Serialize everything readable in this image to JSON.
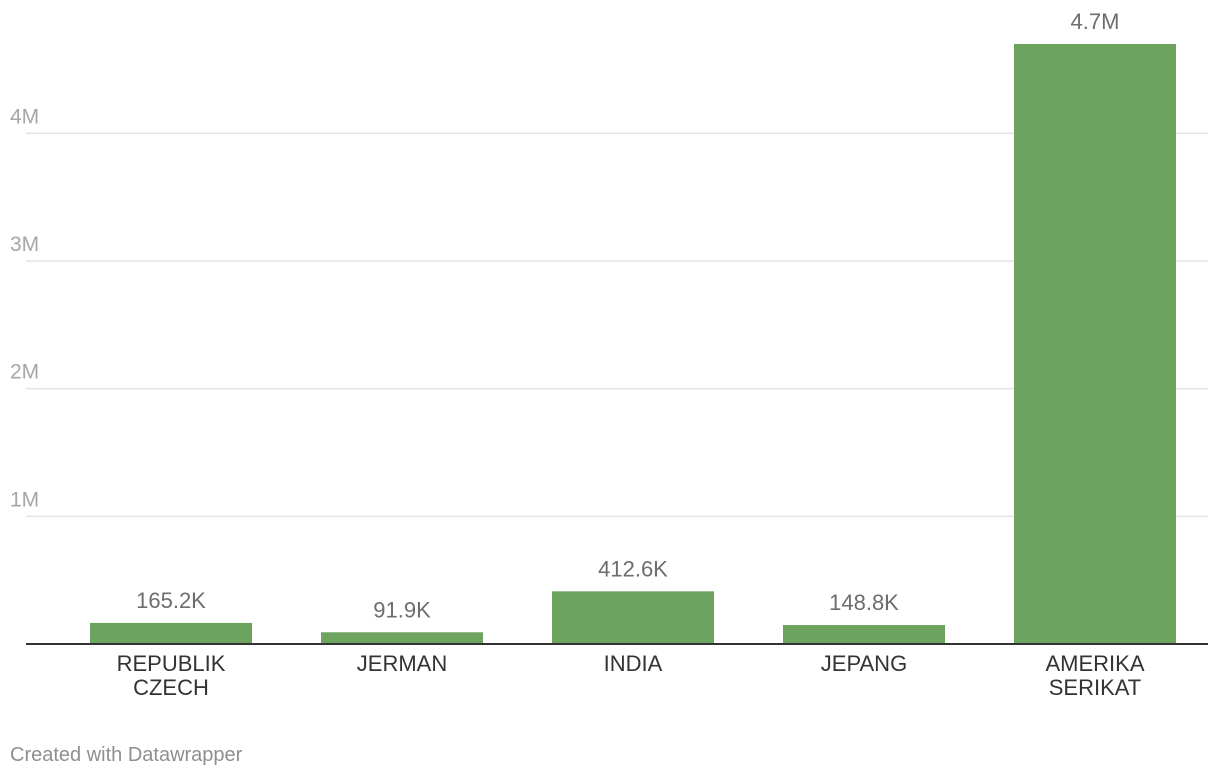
{
  "chart_data": {
    "type": "bar",
    "categories": [
      "REPUBLIK CZECH",
      "JERMAN",
      "INDIA",
      "JEPANG",
      "AMERIKA SERIKAT"
    ],
    "category_label_lines": [
      [
        "REPUBLIK",
        "CZECH"
      ],
      [
        "JERMAN"
      ],
      [
        "INDIA"
      ],
      [
        "JEPANG"
      ],
      [
        "AMERIKA",
        "SERIKAT"
      ]
    ],
    "values": [
      165200,
      91900,
      412600,
      148800,
      4700000
    ],
    "value_labels": [
      "165.2K",
      "91.9K",
      "412.6K",
      "148.8K",
      "4.7M"
    ],
    "y_ticks": [
      1000000,
      2000000,
      3000000,
      4000000
    ],
    "y_tick_labels": [
      "1M",
      "2M",
      "3M",
      "4M"
    ],
    "ylim": [
      0,
      4700000
    ],
    "grid": true,
    "title": "",
    "xlabel": "",
    "ylabel": "",
    "bar_color": "#6ca45f"
  },
  "footer": {
    "credit": "Created with Datawrapper"
  }
}
